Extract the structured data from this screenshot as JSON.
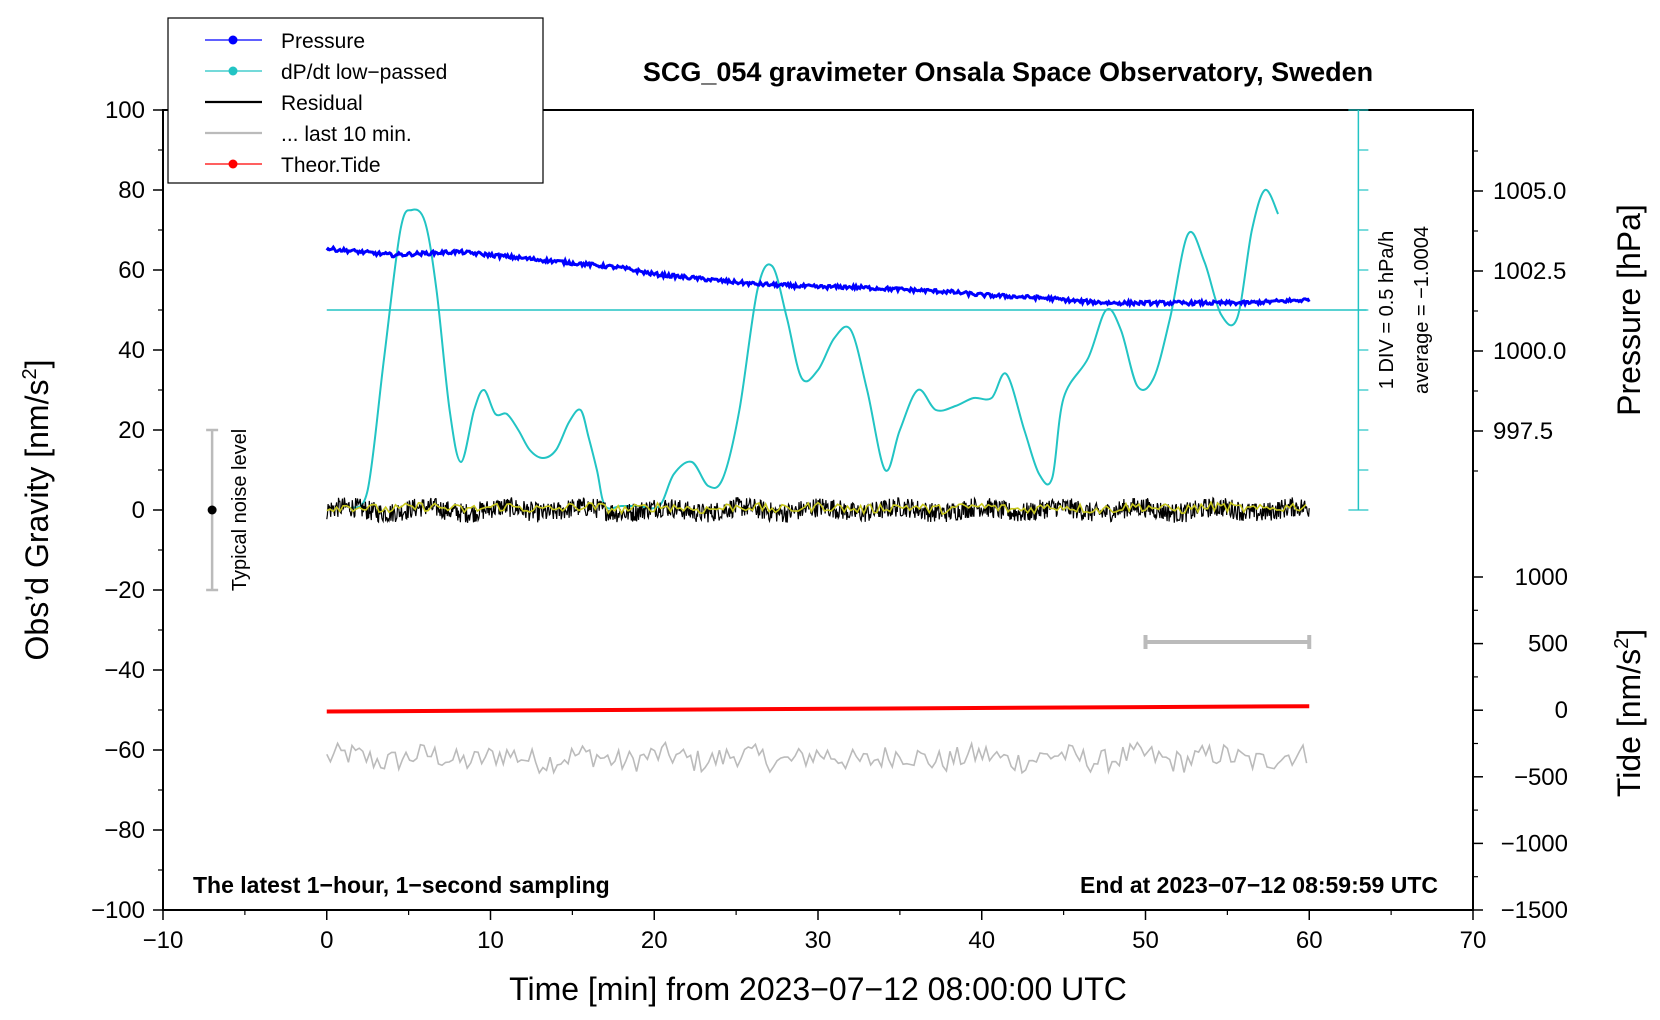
{
  "chart_data": {
    "type": "line",
    "title": "SCG_054 gravimeter Onsala Space Observatory, Sweden",
    "xlabel": "Time [min] from 2023−07−12 08:00:00 UTC",
    "ylabel_main": "Obs’d Gravity [nm/s",
    "ylabel_main_sup": "2",
    "ylabel_main_end": "]",
    "ylabel_pressure": "Pressure [hPa]",
    "ylabel_tide": "Tide [nm/s",
    "ylabel_tide_sup": "2",
    "ylabel_tide_end": "]",
    "note_left": "The latest 1−hour, 1−second sampling",
    "note_right": "End at 2023−07−12 08:59:59 UTC",
    "noise_label": "Typical noise level",
    "dpdt_scale": "1 DIV = 0.5 hPa/h",
    "dpdt_average": "average = −1.0004",
    "xlim": [
      -10,
      70
    ],
    "ylim": [
      -100,
      100
    ],
    "pressure_lim": [
      995,
      1007.5
    ],
    "tide_lim": [
      -1500,
      1500
    ],
    "x_ticks": [
      -10,
      0,
      10,
      20,
      30,
      40,
      50,
      60,
      70
    ],
    "x_tick_labels": [
      "−10",
      "0",
      "10",
      "20",
      "30",
      "40",
      "50",
      "60",
      "70"
    ],
    "y_ticks": [
      100,
      80,
      60,
      40,
      20,
      0,
      -20,
      -40,
      -60,
      -80,
      -100
    ],
    "y_tick_labels": [
      "100",
      "80",
      "60",
      "40",
      "20",
      "0",
      "−20",
      "−40",
      "−60",
      "−80",
      "−100"
    ],
    "pressure_ticks": [
      1005.0,
      1002.5,
      1000.0,
      997.5
    ],
    "pressure_tick_labels": [
      "1005.0",
      "1002.5",
      "1000.0",
      "997.5"
    ],
    "tide_ticks": [
      1000,
      500,
      0,
      -500,
      -1000,
      -1500
    ],
    "tide_tick_labels": [
      "1000",
      "500",
      "0",
      "−500",
      "−1000",
      "−1500"
    ],
    "legend": [
      {
        "label": "Pressure",
        "color": "#0000ff",
        "marker": true
      },
      {
        "label": "dP/dt low−passed",
        "color": "#22c4c4",
        "marker": true
      },
      {
        "label": "Residual",
        "color": "#000000",
        "marker": false
      },
      {
        "label": "... last 10 min.",
        "color": "#bbbbbb",
        "marker": false
      },
      {
        "label": "Theor.Tide",
        "color": "#ff0000",
        "marker": true
      }
    ],
    "series": {
      "pressure": {
        "name": "Pressure",
        "color": "#0000ff",
        "x": [
          0,
          2,
          4,
          6,
          8,
          10,
          12,
          14,
          16,
          18,
          20,
          22,
          24,
          26,
          28,
          30,
          32,
          34,
          36,
          38,
          40,
          42,
          44,
          46,
          48,
          50,
          52,
          54,
          56,
          58,
          60
        ],
        "y": [
          1003.2,
          1003.1,
          1003.0,
          1003.05,
          1003.1,
          1003.0,
          1002.9,
          1002.8,
          1002.7,
          1002.6,
          1002.4,
          1002.3,
          1002.2,
          1002.1,
          1002.05,
          1002.0,
          1002.0,
          1001.95,
          1001.9,
          1001.85,
          1001.75,
          1001.7,
          1001.65,
          1001.55,
          1001.5,
          1001.5,
          1001.5,
          1001.5,
          1001.5,
          1001.55,
          1001.6
        ]
      },
      "dpdt": {
        "name": "dP/dt low−passed",
        "color": "#22c4c4",
        "x": [
          1.5,
          2.5,
          3.5,
          4.5,
          5.2,
          6.0,
          6.7,
          7.5,
          8.2,
          9.0,
          9.6,
          10.3,
          11.0,
          11.7,
          12.4,
          13.2,
          14.0,
          14.8,
          15.5,
          16.0,
          16.5,
          17.0,
          18.0,
          19.0,
          20.3,
          21.2,
          22.3,
          23.3,
          24.2,
          25.2,
          26.3,
          27.2,
          28.1,
          29.0,
          30.0,
          31.0,
          32.0,
          33.0,
          34.1,
          35.0,
          36.1,
          37.2,
          38.4,
          39.5,
          40.6,
          41.5,
          42.6,
          43.5,
          44.3,
          45.0,
          46.5,
          47.6,
          48.5,
          49.5,
          50.5,
          51.5,
          52.6,
          53.6,
          54.6,
          55.6,
          56.5,
          57.3,
          58.1
        ],
        "y": [
          0.5,
          5,
          38,
          70,
          75,
          72,
          55,
          25,
          12,
          25,
          30,
          24,
          24,
          20,
          15,
          13,
          15,
          22,
          25,
          18,
          10,
          1,
          1,
          1,
          1,
          9,
          12,
          6,
          8,
          25,
          55,
          61,
          48,
          33,
          35,
          43,
          45,
          30,
          10,
          20,
          30,
          25,
          26,
          28,
          28,
          34,
          20,
          9,
          8,
          28,
          38,
          50,
          45,
          31,
          33,
          48,
          69,
          62,
          49,
          48,
          70,
          80,
          74
        ]
      },
      "residual": {
        "name": "Residual",
        "color": "#000000",
        "x_range": [
          0,
          60
        ],
        "level": 0,
        "noise_amplitude": 2.5
      },
      "residual_smoothed": {
        "name": "Residual smoothed",
        "color": "#c8c81e",
        "x_range": [
          0,
          60
        ],
        "level": 0,
        "noise_amplitude": 1.2
      },
      "last_10_min": {
        "name": "... last 10 min.",
        "color": "#bbbbbb",
        "x_range": [
          0,
          60
        ],
        "level": -62,
        "noise_amplitude": 3
      },
      "theoretical_tide": {
        "name": "Theor.Tide",
        "color": "#ff0000",
        "x": [
          0,
          60
        ],
        "y_tide": [
          -10,
          30
        ]
      }
    },
    "dpdt_zero_line": {
      "y": 50,
      "color": "#22c4c4"
    },
    "dpdt_scale_axis": {
      "color": "#22c4c4",
      "x": 63,
      "y_range": [
        0,
        100
      ],
      "divisions": 10
    },
    "noise_bar": {
      "x": -7,
      "y_range": [
        -20,
        20
      ],
      "center": 0,
      "color": "#bbbbbb"
    },
    "last10_bar": {
      "x_range": [
        50,
        60
      ],
      "y": -33,
      "color": "#bbbbbb"
    }
  }
}
